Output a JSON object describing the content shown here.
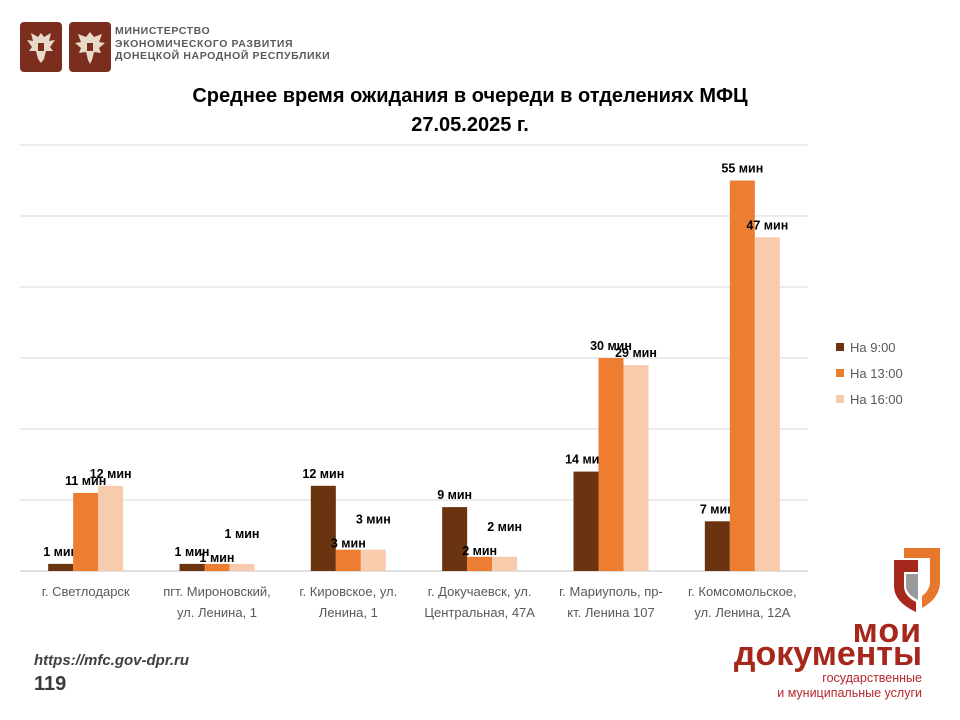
{
  "header": {
    "ministry_lines": [
      "МИНИСТЕРСТВО",
      "ЭКОНОМИЧЕСКОГО РАЗВИТИЯ",
      "ДОНЕЦКОЙ НАРОДНОЙ РЕСПУБЛИКИ"
    ],
    "emblem_icons": [
      "russian-eagle-icon",
      "dpr-eagle-icon"
    ],
    "emblem_color": "#7b2e1e"
  },
  "title_lines": [
    "Среднее время ожидания в очереди в отделениях МФЦ",
    "27.05.2025 г."
  ],
  "chart_data": {
    "type": "bar",
    "categories": [
      [
        "г. Светлодарск"
      ],
      [
        "пгт. Мироновский,",
        "ул. Ленина, 1"
      ],
      [
        "г. Кировское, ул.",
        "Ленина, 1"
      ],
      [
        "г. Докучаевск, ул.",
        "Центральная, 47А"
      ],
      [
        "г. Мариуполь, пр-",
        "кт. Ленина 107"
      ],
      [
        "г. Комсомольское,",
        "ул. Ленина, 12А"
      ]
    ],
    "series": [
      {
        "name": "На 9:00",
        "color": "#6b3410",
        "values": [
          1,
          1,
          12,
          9,
          14,
          7
        ],
        "labels": [
          "1 мин",
          "1 мин",
          "12 мин",
          "9 мин",
          "14 мин",
          "7 мин"
        ]
      },
      {
        "name": "На 13:00",
        "color": "#ed7d31",
        "values": [
          11,
          1,
          3,
          2,
          30,
          55
        ],
        "labels": [
          "11 мин",
          "1 мин",
          "3 мин",
          "2 мин",
          "30 мин",
          "55 мин"
        ]
      },
      {
        "name": "На 16:00",
        "color": "#f8cbad",
        "values": [
          12,
          1,
          3,
          2,
          29,
          47
        ],
        "labels": [
          "12 мин",
          "1 мин",
          "3 мин",
          "2 мин",
          "29 мин",
          "47 мин"
        ]
      }
    ],
    "ylim": [
      0,
      60
    ],
    "grid": true,
    "legend": "right"
  },
  "footer": {
    "url": "https://mfc.gov-dpr.ru",
    "page_number": "119"
  },
  "brand": {
    "line1": "мои",
    "line2": "документы",
    "sub1": "государственные",
    "sub2": "и муниципальные услуги",
    "logo_icon": "moi-dokumenty-logo-icon",
    "colors": {
      "red": "#a6271c",
      "orange": "#e8772e",
      "gray": "#9a9a9a"
    }
  }
}
